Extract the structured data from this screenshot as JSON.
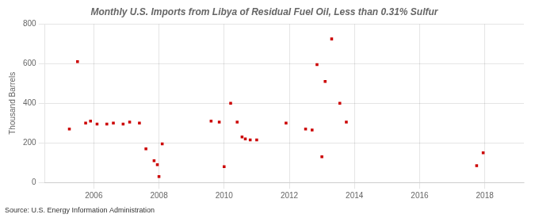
{
  "chart_data": {
    "type": "scatter",
    "title": "Monthly U.S. Imports from Libya of Residual Fuel Oil, Less than 0.31% Sulfur",
    "ylabel": "Thousand Barrels",
    "source": "Source: U.S. Energy Information Administration",
    "color": "#cc0000",
    "marker": "square",
    "grid": true,
    "xlim": [
      2004.5,
      2019.2
    ],
    "xticks": [
      2006,
      2008,
      2010,
      2012,
      2014,
      2016,
      2018
    ],
    "ylim": [
      0,
      800
    ],
    "yticks": [
      0,
      200,
      400,
      600,
      800
    ],
    "x": [
      2005.25,
      2005.5,
      2005.75,
      2005.9,
      2006.1,
      2006.4,
      2006.6,
      2006.9,
      2007.1,
      2007.4,
      2007.6,
      2007.85,
      2007.95,
      2008.0,
      2008.1,
      2009.6,
      2009.85,
      2010.0,
      2010.2,
      2010.4,
      2010.55,
      2010.65,
      2010.8,
      2011.0,
      2011.9,
      2012.5,
      2012.7,
      2012.85,
      2013.0,
      2013.1,
      2013.3,
      2013.55,
      2013.75,
      2017.75,
      2017.95
    ],
    "values": [
      270,
      610,
      300,
      310,
      295,
      295,
      300,
      295,
      305,
      300,
      170,
      110,
      90,
      30,
      195,
      310,
      305,
      80,
      400,
      305,
      230,
      220,
      215,
      215,
      300,
      270,
      265,
      595,
      130,
      510,
      725,
      400,
      305,
      85,
      150
    ]
  }
}
